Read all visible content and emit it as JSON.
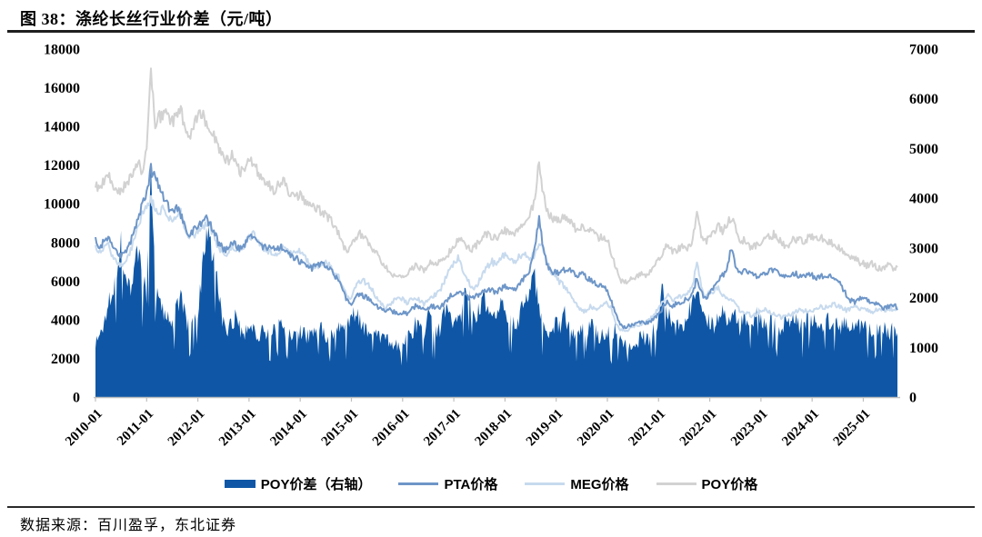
{
  "figure": {
    "title": "图 38：涤纶长丝行业价差（元/吨）",
    "source": "数据来源：百川盈孚，东北证券"
  },
  "chart_data": {
    "type": "bar",
    "subtype": "combo-bar-line",
    "title": "涤纶长丝行业价差（元/吨）",
    "grid": false,
    "legend_position": "bottom",
    "x_unit": "month",
    "x_start": "2010-01",
    "x_end": "2025-09",
    "x_tick_labels": [
      "2010-01",
      "2011-01",
      "2012-01",
      "2013-01",
      "2014-01",
      "2015-01",
      "2016-01",
      "2017-01",
      "2018-01",
      "2019-01",
      "2020-01",
      "2021-01",
      "2022-01",
      "2023-01",
      "2024-01",
      "2025-01"
    ],
    "left_axis": {
      "min": 0,
      "max": 18000,
      "step": 2000,
      "applies_to": [
        "PTA价格",
        "MEG价格",
        "POY价格"
      ]
    },
    "right_axis": {
      "min": 0,
      "max": 7000,
      "step": 1000,
      "applies_to": [
        "POY价差（右轴）"
      ]
    },
    "series": [
      {
        "name": "POY价差（右轴）",
        "type": "bar",
        "axis": "right",
        "color": "#0f57a6",
        "values": [
          1100,
          1250,
          1500,
          1900,
          2300,
          2700,
          3100,
          2700,
          2300,
          2600,
          2900,
          2400,
          2100,
          4700,
          2300,
          1900,
          1700,
          1600,
          1500,
          1800,
          2000,
          1700,
          1400,
          1500,
          1700,
          2500,
          3400,
          3000,
          2600,
          2100,
          1500,
          1400,
          1500,
          1800,
          1400,
          1300,
          1500,
          1400,
          1300,
          1350,
          1300,
          1250,
          1400,
          1500,
          1450,
          1300,
          1250,
          1300,
          1350,
          1300,
          1250,
          1300,
          1350,
          1400,
          1300,
          1250,
          1300,
          1400,
          1350,
          1450,
          1550,
          1800,
          1600,
          1400,
          1350,
          1300,
          1250,
          1200,
          1150,
          1200,
          1100,
          1050,
          1100,
          1200,
          1300,
          1500,
          1400,
          1300,
          1700,
          1500,
          1300,
          1450,
          1800,
          1600,
          1450,
          1550,
          1850,
          2300,
          1900,
          1600,
          1800,
          2000,
          1700,
          1500,
          1700,
          1900,
          1800,
          1700,
          1500,
          1600,
          1800,
          2000,
          2200,
          2400,
          1800,
          1500,
          1200,
          1400,
          1500,
          1400,
          1700,
          1500,
          1300,
          1200,
          1400,
          1300,
          1500,
          1400,
          1200,
          1300,
          1400,
          1200,
          1500,
          1300,
          1100,
          1000,
          1050,
          1100,
          1300,
          1200,
          1150,
          1450,
          1550,
          2300,
          1800,
          1500,
          1450,
          1500,
          1550,
          1800,
          2000,
          2200,
          1700,
          1500,
          1600,
          1500,
          1700,
          1800,
          1450,
          1550,
          1700,
          1450,
          1600,
          1500,
          1350,
          1800,
          1550,
          1450,
          1600,
          1500,
          1450,
          1500,
          1550,
          1500,
          1600,
          1450,
          1500,
          1600,
          1500,
          1600,
          1550,
          1500,
          1600,
          1650,
          1500,
          1450,
          1550,
          1500,
          1400,
          1500,
          1450,
          1500,
          1400,
          1350,
          1450,
          1400,
          1350,
          1400,
          1350
        ]
      },
      {
        "name": "PTA价格",
        "type": "line",
        "axis": "left",
        "color": "#6e96c8",
        "values": [
          8100,
          7800,
          8000,
          8200,
          7800,
          7400,
          7300,
          7600,
          7900,
          8600,
          9300,
          9900,
          10600,
          11800,
          11300,
          10800,
          10400,
          9900,
          9500,
          9800,
          9400,
          8700,
          8500,
          8600,
          8800,
          9000,
          9200,
          8900,
          8400,
          7900,
          7700,
          7600,
          8000,
          7800,
          7700,
          7900,
          8200,
          8300,
          8100,
          7800,
          7700,
          7800,
          7600,
          7700,
          7800,
          7500,
          7300,
          7200,
          7000,
          6800,
          6600,
          6700,
          6800,
          6900,
          6800,
          6600,
          6300,
          6000,
          5500,
          5000,
          4800,
          5200,
          5300,
          5200,
          5100,
          4900,
          4700,
          4500,
          4400,
          4500,
          4400,
          4300,
          4400,
          4300,
          4500,
          4700,
          4600,
          4500,
          4600,
          4700,
          4600,
          4700,
          4900,
          5200,
          5300,
          5500,
          5400,
          5200,
          5100,
          5200,
          5300,
          5500,
          5600,
          5500,
          5400,
          5600,
          5700,
          5600,
          5500,
          5700,
          6000,
          6300,
          6700,
          7800,
          9300,
          7600,
          6800,
          6400,
          6500,
          6400,
          6600,
          6700,
          6400,
          6200,
          6600,
          6200,
          6100,
          5900,
          5700,
          5800,
          5500,
          4900,
          4300,
          3800,
          3600,
          3700,
          3700,
          3800,
          3900,
          3800,
          3900,
          4100,
          4300,
          4600,
          4900,
          4700,
          4800,
          4900,
          5000,
          5100,
          5300,
          6200,
          5400,
          5100,
          5400,
          5700,
          6100,
          6300,
          6500,
          7700,
          6900,
          6400,
          6600,
          6500,
          6300,
          6200,
          6300,
          6400,
          6500,
          6600,
          6400,
          6300,
          6200,
          6300,
          6400,
          6300,
          6200,
          6300,
          6300,
          6200,
          6300,
          6200,
          6300,
          6200,
          6000,
          5700,
          5300,
          5000,
          4900,
          5100,
          5200,
          5000,
          4800,
          4900,
          4700,
          4600,
          4700,
          4800,
          4600
        ]
      },
      {
        "name": "MEG价格",
        "type": "line",
        "axis": "left",
        "color": "#c7daee",
        "values": [
          7900,
          7500,
          7800,
          8000,
          7300,
          6900,
          6800,
          7100,
          7400,
          8100,
          8900,
          9500,
          9900,
          10300,
          9700,
          9600,
          9800,
          9400,
          9100,
          9400,
          9600,
          8700,
          8300,
          8400,
          8600,
          8800,
          9000,
          8700,
          8200,
          7700,
          7500,
          7400,
          7800,
          7600,
          7700,
          7900,
          8200,
          8400,
          8200,
          7800,
          7600,
          7500,
          7300,
          7500,
          7800,
          7500,
          7400,
          7600,
          7500,
          7200,
          6900,
          6700,
          6800,
          6900,
          7000,
          6800,
          6500,
          6200,
          5700,
          5200,
          5100,
          5700,
          6000,
          6000,
          5800,
          5500,
          5100,
          4800,
          4600,
          4800,
          5000,
          5200,
          5100,
          4900,
          5000,
          5200,
          5000,
          4800,
          5000,
          5200,
          5300,
          5600,
          6100,
          6600,
          6900,
          7200,
          6700,
          6100,
          5800,
          5600,
          6000,
          6500,
          6800,
          7000,
          6800,
          7200,
          7400,
          7200,
          7000,
          7200,
          7400,
          7300,
          7200,
          7400,
          7900,
          7600,
          7000,
          6400,
          6200,
          5900,
          5700,
          5400,
          5100,
          4700,
          4500,
          4400,
          4700,
          4600,
          4500,
          4800,
          4900,
          4500,
          3800,
          3500,
          3400,
          3500,
          3600,
          3700,
          3800,
          3900,
          4000,
          4300,
          4600,
          4900,
          5300,
          5000,
          5100,
          5200,
          5300,
          5400,
          5700,
          7100,
          5700,
          5200,
          5400,
          5500,
          5600,
          5300,
          5100,
          5100,
          4800,
          4500,
          4400,
          4300,
          4200,
          4300,
          4400,
          4500,
          4400,
          4300,
          4200,
          4100,
          4200,
          4300,
          4400,
          4500,
          4400,
          4500,
          4500,
          4600,
          4700,
          4600,
          4700,
          4800,
          4700,
          4600,
          4500,
          4600,
          4700,
          4600,
          4600,
          4500,
          4400,
          4500,
          4600,
          4500,
          4600,
          4500,
          4600
        ]
      },
      {
        "name": "POY价格",
        "type": "line",
        "axis": "left",
        "color": "#d2d2d2",
        "values": [
          11000,
          10700,
          11200,
          11500,
          10900,
          10500,
          10700,
          11000,
          11300,
          11800,
          12100,
          11600,
          12800,
          17000,
          13800,
          14500,
          14700,
          14400,
          14200,
          14500,
          14900,
          13900,
          13500,
          13800,
          14800,
          14600,
          14300,
          13900,
          13400,
          12700,
          12300,
          12200,
          12500,
          12000,
          11700,
          11500,
          12300,
          12100,
          11700,
          11300,
          11100,
          10900,
          10700,
          11000,
          11200,
          10700,
          10500,
          10400,
          10400,
          10200,
          10000,
          9800,
          9700,
          9600,
          9400,
          9200,
          8900,
          8400,
          7900,
          7500,
          7800,
          8300,
          8500,
          8200,
          7900,
          7700,
          7400,
          7000,
          6700,
          6500,
          6300,
          6200,
          6300,
          6200,
          6600,
          6800,
          6700,
          6600,
          6800,
          7000,
          6900,
          7000,
          7200,
          7500,
          7700,
          8100,
          8200,
          7800,
          7600,
          7800,
          8000,
          8300,
          8500,
          8300,
          8200,
          8400,
          8600,
          8400,
          8300,
          8600,
          8900,
          9200,
          9500,
          10200,
          12200,
          10400,
          9600,
          9300,
          9200,
          9100,
          9400,
          9200,
          8900,
          8500,
          8800,
          8600,
          8700,
          8400,
          8200,
          8300,
          8100,
          7400,
          6700,
          6100,
          5900,
          6100,
          6000,
          6200,
          6400,
          6300,
          6500,
          6900,
          7100,
          7400,
          7900,
          7600,
          7500,
          7700,
          7800,
          7700,
          8100,
          9700,
          8400,
          8100,
          8200,
          8500,
          8800,
          8600,
          8900,
          9300,
          8700,
          8200,
          8100,
          7900,
          7700,
          7900,
          8000,
          8200,
          8300,
          8400,
          8200,
          8000,
          7800,
          8000,
          8200,
          8100,
          8000,
          8200,
          8300,
          8200,
          8300,
          8100,
          8000,
          7900,
          7800,
          7600,
          7500,
          7300,
          7200,
          7000,
          6900,
          6800,
          6900,
          6700,
          6600,
          6700,
          6900,
          6700,
          6700
        ]
      }
    ]
  }
}
